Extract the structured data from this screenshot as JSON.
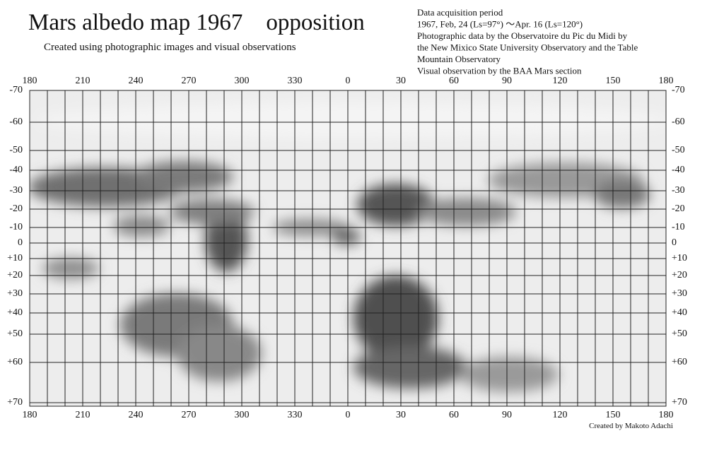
{
  "header": {
    "title": "Mars albedo map 1967　opposition",
    "subtitle": "Created using photographic images and visual observations"
  },
  "info": [
    "Data acquisition period",
    "1967, Feb, 24 (Ls=97°) ～Apr. 16 (Ls=120°)",
    "Photographic data by the Observatoire du Pic du Midi by",
    "the New Mixico State University Observatory and the Table",
    "Mountain Observatory",
    "Visual observation by the BAA Mars section"
  ],
  "longitude_labels": [
    "180",
    "210",
    "240",
    "270",
    "300",
    "330",
    "0",
    "30",
    "60",
    "90",
    "120",
    "150",
    "180"
  ],
  "latitude_labels": [
    "-70",
    "-60",
    "-50",
    "-40",
    "-30",
    "-20",
    "-10",
    "0",
    "+10",
    "+20",
    "+30",
    "+40",
    "+50",
    "+60",
    "+70"
  ],
  "credit": "Created by Makoto Adachi"
}
